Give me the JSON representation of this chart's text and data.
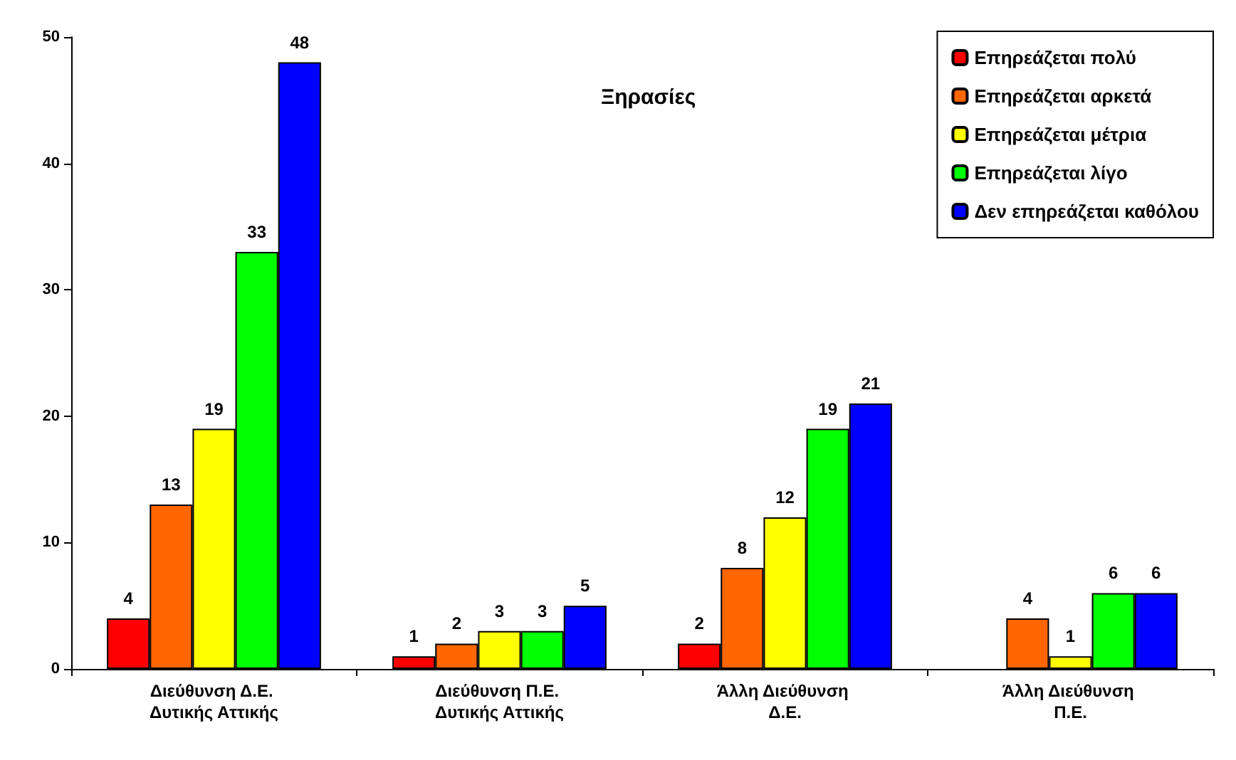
{
  "chart_data": {
    "type": "bar",
    "title": "Ξηρασίες",
    "categories": [
      "Διεύθυνση Δ.Ε. Δυτικής Αττικής",
      "Διεύθυνση Π.Ε. Δυτικής Αττικής",
      "Άλλη Διεύθυνση Δ.Ε.",
      "Άλλη Διεύθυνση Π.Ε."
    ],
    "series": [
      {
        "name": "Επηρεάζεται πολύ",
        "color": "#ff0000",
        "values": [
          4,
          1,
          2,
          null
        ]
      },
      {
        "name": "Επηρεάζεται αρκετά",
        "color": "#ff6600",
        "values": [
          13,
          2,
          8,
          4
        ]
      },
      {
        "name": "Επηρεάζεται μέτρια",
        "color": "#ffff00",
        "values": [
          19,
          3,
          12,
          1
        ]
      },
      {
        "name": "Επηρεάζεται λίγο",
        "color": "#00ff00",
        "values": [
          33,
          3,
          19,
          6
        ]
      },
      {
        "name": "Δεν επηρεάζεται καθόλου",
        "color": "#0000ff",
        "values": [
          48,
          5,
          21,
          6
        ]
      }
    ],
    "ylim": [
      0,
      50
    ],
    "yticks": [
      0,
      10,
      20,
      30,
      40,
      50
    ],
    "grid": false,
    "legend": "top right",
    "data_labels": true
  }
}
